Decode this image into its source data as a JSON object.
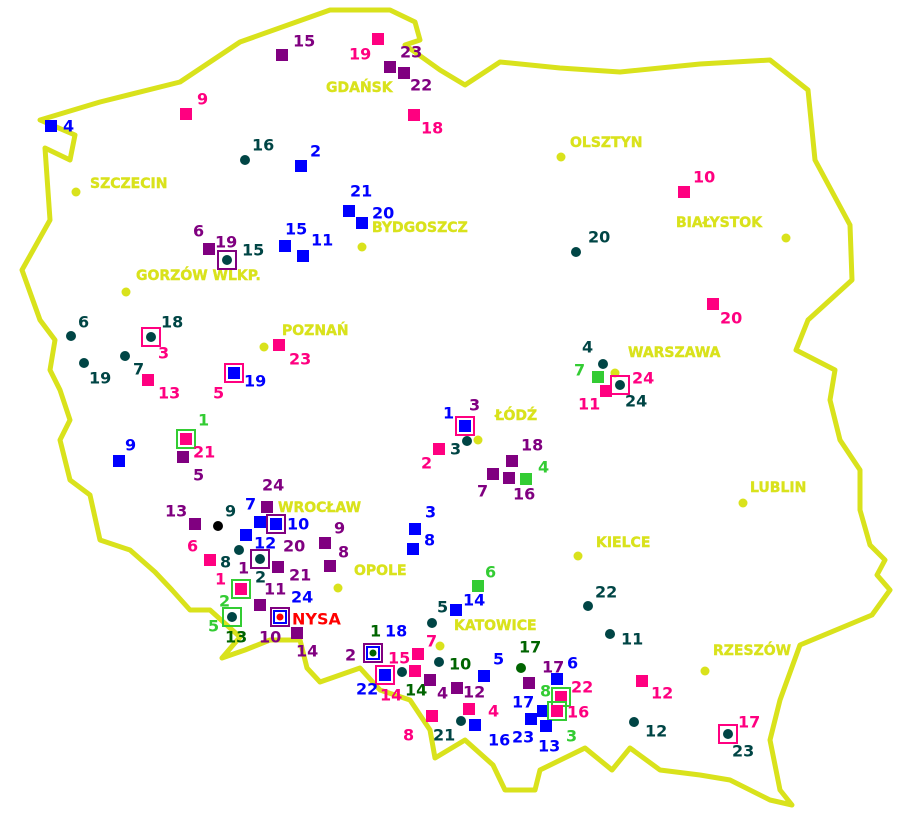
{
  "palette": {
    "blue": "#0000ff",
    "pink": "#ff0080",
    "purple": "#800080",
    "teal": "#004545",
    "green": "#33cc33",
    "dkgreen": "#006400",
    "yellow": "#d9e21c",
    "red": "#ff0000",
    "black": "#000000"
  },
  "border_color": "#d9e21c",
  "cities": [
    {
      "name": "GDAŃSK",
      "dot": false
    },
    {
      "name": "OLSZTYN",
      "dot": true
    },
    {
      "name": "SZCZECIN",
      "dot": true
    },
    {
      "name": "BIAŁYSTOK",
      "dot": true
    },
    {
      "name": "BYDGOSZCZ",
      "dot": true
    },
    {
      "name": "GORZÓW WLKP.",
      "dot": true
    },
    {
      "name": "POZNAŃ",
      "dot": true
    },
    {
      "name": "WARSZAWA",
      "dot": true
    },
    {
      "name": "ŁÓDŹ",
      "dot": true
    },
    {
      "name": "LUBLIN",
      "dot": true
    },
    {
      "name": "WROCŁAW",
      "dot": false
    },
    {
      "name": "KIELCE",
      "dot": true
    },
    {
      "name": "OPOLE",
      "dot": true
    },
    {
      "name": "KATOWICE",
      "dot": true
    },
    {
      "name": "RZESZÓW",
      "dot": true
    }
  ],
  "markers": [
    {
      "shape": "square",
      "color": "purple",
      "labels": [
        {
          "text": "15",
          "color": "purple"
        }
      ]
    },
    {
      "shape": "square",
      "color": "pink",
      "labels": [
        {
          "text": "19",
          "color": "pink"
        }
      ]
    },
    {
      "shape": "square",
      "color": "purple",
      "labels": [
        {
          "text": "23",
          "color": "purple"
        }
      ]
    },
    {
      "shape": "square",
      "color": "purple",
      "labels": [
        {
          "text": "22",
          "color": "purple"
        }
      ]
    },
    {
      "shape": "square",
      "color": "pink",
      "labels": [
        {
          "text": "18",
          "color": "pink"
        }
      ]
    },
    {
      "shape": "square",
      "color": "pink",
      "labels": [
        {
          "text": "9",
          "color": "pink"
        }
      ]
    },
    {
      "shape": "square",
      "color": "blue",
      "labels": [
        {
          "text": "4",
          "color": "blue"
        }
      ]
    },
    {
      "shape": "circle",
      "color": "teal",
      "labels": [
        {
          "text": "16",
          "color": "teal"
        }
      ]
    },
    {
      "shape": "square",
      "color": "blue",
      "labels": [
        {
          "text": "2",
          "color": "blue"
        }
      ]
    },
    {
      "shape": "square",
      "color": "blue",
      "labels": [
        {
          "text": "21",
          "color": "blue"
        }
      ]
    },
    {
      "shape": "square",
      "color": "blue",
      "labels": [
        {
          "text": "20",
          "color": "blue"
        }
      ]
    },
    {
      "shape": "square",
      "color": "blue",
      "labels": [
        {
          "text": "15",
          "color": "blue"
        }
      ]
    },
    {
      "shape": "square",
      "color": "blue",
      "labels": [
        {
          "text": "11",
          "color": "blue"
        }
      ]
    },
    {
      "shape": "square",
      "color": "purple",
      "labels": [
        {
          "text": "6",
          "color": "purple"
        }
      ]
    },
    {
      "shape": "framed",
      "frame": "purple",
      "inner": "circle",
      "color": "teal",
      "labels": [
        {
          "text": "19",
          "color": "purple"
        },
        {
          "text": "15",
          "color": "teal"
        }
      ]
    },
    {
      "shape": "circle",
      "color": "teal",
      "labels": [
        {
          "text": "20",
          "color": "teal"
        }
      ]
    },
    {
      "shape": "square",
      "color": "pink",
      "labels": [
        {
          "text": "10",
          "color": "pink"
        }
      ]
    },
    {
      "shape": "square",
      "color": "pink",
      "labels": [
        {
          "text": "20",
          "color": "pink"
        }
      ]
    },
    {
      "shape": "circle",
      "color": "teal",
      "labels": [
        {
          "text": "6",
          "color": "teal"
        }
      ]
    },
    {
      "shape": "circle",
      "color": "teal",
      "labels": [
        {
          "text": "19",
          "color": "teal"
        }
      ]
    },
    {
      "shape": "framed",
      "frame": "pink",
      "inner": "circle",
      "color": "teal",
      "labels": [
        {
          "text": "18",
          "color": "teal"
        },
        {
          "text": "3",
          "color": "pink"
        }
      ]
    },
    {
      "shape": "circle",
      "color": "teal",
      "labels": [
        {
          "text": "7",
          "color": "teal"
        }
      ]
    },
    {
      "shape": "square",
      "color": "pink",
      "labels": [
        {
          "text": "13",
          "color": "pink"
        }
      ]
    },
    {
      "shape": "framed",
      "frame": "pink",
      "inner": "square",
      "color": "blue",
      "labels": [
        {
          "text": "19",
          "color": "blue"
        },
        {
          "text": "5",
          "color": "pink"
        }
      ]
    },
    {
      "shape": "square",
      "color": "pink",
      "labels": [
        {
          "text": "23",
          "color": "pink"
        }
      ]
    },
    {
      "shape": "circle",
      "color": "teal",
      "labels": [
        {
          "text": "4",
          "color": "teal"
        }
      ]
    },
    {
      "shape": "square",
      "color": "green",
      "labels": [
        {
          "text": "7",
          "color": "green"
        }
      ]
    },
    {
      "shape": "framed",
      "frame": "pink",
      "inner": "circle",
      "color": "teal",
      "labels": [
        {
          "text": "24",
          "color": "pink"
        },
        {
          "text": "24",
          "color": "teal"
        }
      ]
    },
    {
      "shape": "square",
      "color": "pink",
      "labels": [
        {
          "text": "11",
          "color": "pink"
        }
      ]
    },
    {
      "shape": "framed",
      "frame": "pink",
      "inner": "square",
      "color": "blue",
      "labels": [
        {
          "text": "1",
          "color": "blue"
        },
        {
          "text": "3",
          "color": "purple"
        }
      ]
    },
    {
      "shape": "circle",
      "color": "teal",
      "labels": [
        {
          "text": "3",
          "color": "teal"
        }
      ]
    },
    {
      "shape": "square",
      "color": "pink",
      "labels": [
        {
          "text": "2",
          "color": "pink"
        }
      ]
    },
    {
      "shape": "square",
      "color": "purple",
      "labels": [
        {
          "text": "18",
          "color": "purple"
        }
      ]
    },
    {
      "shape": "square",
      "color": "purple",
      "labels": [
        {
          "text": "7",
          "color": "purple"
        }
      ]
    },
    {
      "shape": "square",
      "color": "purple",
      "labels": [
        {
          "text": "16",
          "color": "purple"
        }
      ]
    },
    {
      "shape": "square",
      "color": "green",
      "labels": [
        {
          "text": "4",
          "color": "green"
        }
      ]
    },
    {
      "shape": "framed",
      "frame": "green",
      "inner": "square",
      "color": "pink",
      "labels": [
        {
          "text": "1",
          "color": "green"
        }
      ]
    },
    {
      "shape": "square",
      "color": "purple",
      "labels": [
        {
          "text": "21",
          "color": "pink"
        },
        {
          "text": "5",
          "color": "purple"
        }
      ]
    },
    {
      "shape": "square",
      "color": "blue",
      "labels": [
        {
          "text": "9",
          "color": "blue"
        }
      ]
    },
    {
      "shape": "square",
      "color": "purple",
      "labels": [
        {
          "text": "13",
          "color": "purple"
        }
      ]
    },
    {
      "shape": "circle",
      "color": "black",
      "labels": [
        {
          "text": "9",
          "color": "teal"
        }
      ]
    },
    {
      "shape": "square",
      "color": "purple",
      "labels": [
        {
          "text": "24",
          "color": "purple"
        }
      ]
    },
    {
      "shape": "square",
      "color": "blue",
      "labels": [
        {
          "text": "7",
          "color": "blue"
        }
      ]
    },
    {
      "shape": "framed",
      "frame": "purple",
      "inner": "square",
      "color": "blue",
      "labels": [
        {
          "text": "10",
          "color": "blue"
        }
      ]
    },
    {
      "shape": "square",
      "color": "blue",
      "labels": [
        {
          "text": "12",
          "color": "blue"
        }
      ]
    },
    {
      "shape": "circle",
      "color": "teal",
      "labels": [
        {
          "text": "20",
          "color": "purple"
        }
      ]
    },
    {
      "shape": "square",
      "color": "pink",
      "labels": [
        {
          "text": "6",
          "color": "pink"
        },
        {
          "text": "8",
          "color": "teal"
        }
      ]
    },
    {
      "shape": "framed",
      "frame": "purple",
      "inner": "circle",
      "color": "teal",
      "labels": [
        {
          "text": "1",
          "color": "purple"
        },
        {
          "text": "2",
          "color": "teal"
        }
      ]
    },
    {
      "shape": "square",
      "color": "purple",
      "labels": [
        {
          "text": "21",
          "color": "purple"
        }
      ]
    },
    {
      "shape": "framed",
      "frame": "green",
      "inner": "square",
      "color": "pink",
      "labels": [
        {
          "text": "1",
          "color": "pink"
        },
        {
          "text": "2",
          "color": "green"
        }
      ]
    },
    {
      "shape": "square",
      "color": "purple",
      "labels": [
        {
          "text": "11",
          "color": "purple"
        }
      ]
    },
    {
      "shape": "framed2",
      "frame": "purple",
      "frame2": "blue",
      "inner": "circle",
      "color": "red",
      "labels": [
        {
          "text": "24",
          "color": "blue"
        },
        {
          "text": "NYSA",
          "color": "red"
        }
      ]
    },
    {
      "shape": "framed",
      "frame": "green",
      "inner": "circle",
      "color": "teal",
      "labels": [
        {
          "text": "5",
          "color": "green"
        },
        {
          "text": "13",
          "color": "dkgreen"
        }
      ]
    },
    {
      "shape": "square",
      "color": "purple",
      "labels": [
        {
          "text": "14",
          "color": "purple"
        },
        {
          "text": "10",
          "color": "purple"
        }
      ]
    },
    {
      "shape": "square",
      "color": "purple",
      "labels": [
        {
          "text": "9",
          "color": "purple"
        }
      ]
    },
    {
      "shape": "square",
      "color": "purple",
      "labels": [
        {
          "text": "8",
          "color": "purple"
        }
      ]
    },
    {
      "shape": "square",
      "color": "blue",
      "labels": [
        {
          "text": "3",
          "color": "blue"
        }
      ]
    },
    {
      "shape": "square",
      "color": "blue",
      "labels": [
        {
          "text": "8",
          "color": "blue"
        }
      ]
    },
    {
      "shape": "square",
      "color": "green",
      "labels": [
        {
          "text": "6",
          "color": "green"
        }
      ]
    },
    {
      "shape": "square",
      "color": "blue",
      "labels": [
        {
          "text": "14",
          "color": "blue"
        }
      ]
    },
    {
      "shape": "circle",
      "color": "teal",
      "labels": [
        {
          "text": "5",
          "color": "teal"
        }
      ]
    },
    {
      "shape": "circle",
      "color": "teal",
      "labels": [
        {
          "text": "22",
          "color": "teal"
        }
      ]
    },
    {
      "shape": "circle",
      "color": "teal",
      "labels": [
        {
          "text": "11",
          "color": "teal"
        }
      ]
    },
    {
      "shape": "square",
      "color": "pink",
      "labels": [
        {
          "text": "12",
          "color": "pink"
        }
      ]
    },
    {
      "shape": "circle",
      "color": "teal",
      "labels": [
        {
          "text": "12",
          "color": "teal"
        }
      ]
    },
    {
      "shape": "framed",
      "frame": "pink",
      "inner": "circle",
      "color": "teal",
      "labels": [
        {
          "text": "17",
          "color": "pink"
        },
        {
          "text": "23",
          "color": "teal"
        }
      ]
    },
    {
      "shape": "framed2",
      "frame": "purple",
      "frame2": "blue",
      "inner": "circle",
      "color": "dkgreen",
      "labels": [
        {
          "text": "1",
          "color": "dkgreen"
        },
        {
          "text": "18",
          "color": "blue"
        },
        {
          "text": "2",
          "color": "purple"
        }
      ]
    },
    {
      "shape": "framed",
      "frame": "pink",
      "inner": "square",
      "color": "blue",
      "labels": [
        {
          "text": "22",
          "color": "blue"
        },
        {
          "text": "15",
          "color": "pink"
        },
        {
          "text": "14",
          "color": "pink"
        }
      ]
    },
    {
      "shape": "circle",
      "color": "teal",
      "labels": [
        {
          "text": "14",
          "color": "dkgreen"
        }
      ]
    },
    {
      "shape": "square",
      "color": "pink",
      "labels": [
        {
          "text": "7",
          "color": "pink"
        }
      ]
    },
    {
      "shape": "square",
      "color": "pink",
      "labels": []
    },
    {
      "shape": "circle",
      "color": "teal",
      "labels": [
        {
          "text": "10",
          "color": "dkgreen"
        }
      ]
    },
    {
      "shape": "square",
      "color": "purple",
      "labels": [
        {
          "text": "4",
          "color": "purple"
        }
      ]
    },
    {
      "shape": "square",
      "color": "purple",
      "labels": [
        {
          "text": "12",
          "color": "purple"
        }
      ]
    },
    {
      "shape": "square",
      "color": "pink",
      "labels": [
        {
          "text": "4",
          "color": "pink"
        }
      ]
    },
    {
      "shape": "square",
      "color": "pink",
      "labels": [
        {
          "text": "8",
          "color": "pink"
        }
      ]
    },
    {
      "shape": "circle",
      "color": "teal",
      "labels": [
        {
          "text": "21",
          "color": "teal"
        }
      ]
    },
    {
      "shape": "square",
      "color": "blue",
      "labels": [
        {
          "text": "16",
          "color": "blue"
        }
      ]
    },
    {
      "shape": "square",
      "color": "blue",
      "labels": [
        {
          "text": "5",
          "color": "blue"
        }
      ]
    },
    {
      "shape": "circle",
      "color": "dkgreen",
      "labels": [
        {
          "text": "17",
          "color": "dkgreen"
        }
      ]
    },
    {
      "shape": "square",
      "color": "purple",
      "labels": [
        {
          "text": "17",
          "color": "purple"
        }
      ]
    },
    {
      "shape": "square",
      "color": "blue",
      "labels": [
        {
          "text": "6",
          "color": "blue"
        }
      ]
    },
    {
      "shape": "framed",
      "frame": "green",
      "inner": "square",
      "color": "pink",
      "labels": [
        {
          "text": "22",
          "color": "pink"
        },
        {
          "text": "8",
          "color": "green"
        }
      ]
    },
    {
      "shape": "square",
      "color": "blue",
      "labels": [
        {
          "text": "17",
          "color": "blue"
        }
      ]
    },
    {
      "shape": "framed",
      "frame": "green",
      "inner": "square",
      "color": "pink",
      "labels": [
        {
          "text": "16",
          "color": "pink"
        }
      ]
    },
    {
      "shape": "square",
      "color": "blue",
      "labels": [
        {
          "text": "23",
          "color": "blue"
        }
      ]
    },
    {
      "shape": "square",
      "color": "blue",
      "labels": [
        {
          "text": "13",
          "color": "blue"
        },
        {
          "text": "3",
          "color": "green"
        }
      ]
    }
  ]
}
